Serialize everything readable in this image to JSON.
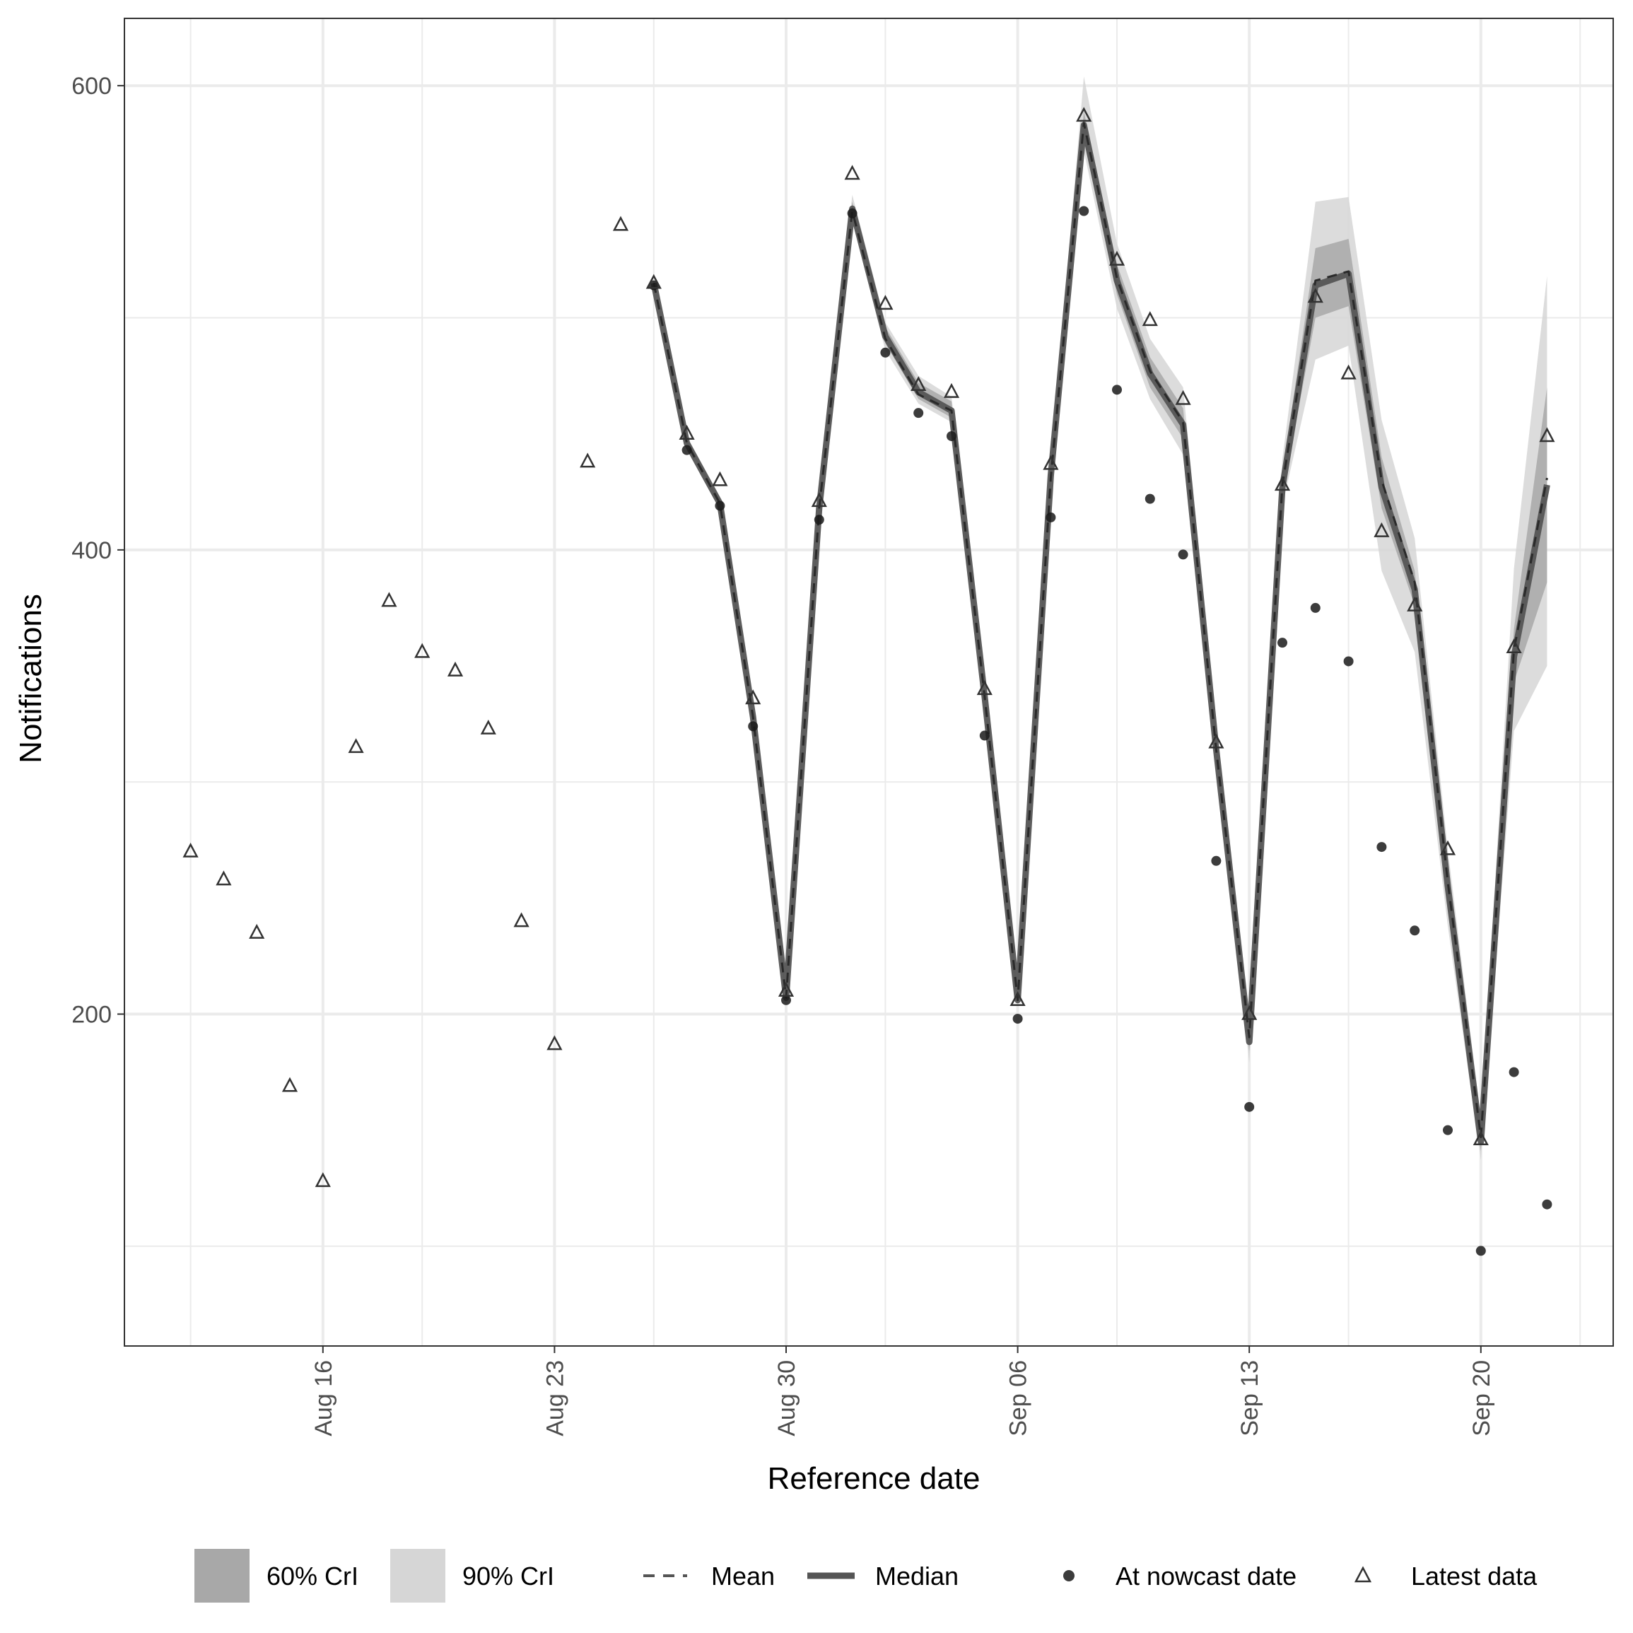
{
  "chart_data": {
    "type": "line",
    "xlabel": "Reference date",
    "ylabel": "Notifications",
    "x_ticks": [
      {
        "date": "2021-08-16",
        "label": "Aug 16"
      },
      {
        "date": "2021-08-23",
        "label": "Aug 23"
      },
      {
        "date": "2021-08-30",
        "label": "Aug 30"
      },
      {
        "date": "2021-09-06",
        "label": "Sep 06"
      },
      {
        "date": "2021-09-13",
        "label": "Sep 13"
      },
      {
        "date": "2021-09-20",
        "label": "Sep 20"
      }
    ],
    "y_ticks": [
      200,
      400,
      600
    ],
    "xlim": [
      "2021-08-10",
      "2021-09-24"
    ],
    "ylim": [
      57,
      629
    ],
    "grid": true,
    "legend_position": "bottom",
    "colors": {
      "ci60": "#a8a8a8",
      "ci90": "#d6d6d6",
      "line": "#555555",
      "points": "#1a1a1a",
      "grid": "#ebebeb",
      "axis": "#333333"
    },
    "legend": [
      {
        "key": "ci60",
        "label": "60% CrI"
      },
      {
        "key": "ci90",
        "label": "90% CrI"
      },
      {
        "key": "mean",
        "label": "Mean"
      },
      {
        "key": "median",
        "label": "Median"
      },
      {
        "key": "nowcast",
        "label": "At nowcast date"
      },
      {
        "key": "latest",
        "label": "Latest data"
      }
    ],
    "series": [
      {
        "name": "Latest data",
        "marker": "triangle",
        "points": [
          [
            "2021-08-12",
            270
          ],
          [
            "2021-08-13",
            258
          ],
          [
            "2021-08-14",
            235
          ],
          [
            "2021-08-15",
            169
          ],
          [
            "2021-08-16",
            128
          ],
          [
            "2021-08-17",
            315
          ],
          [
            "2021-08-18",
            378
          ],
          [
            "2021-08-19",
            356
          ],
          [
            "2021-08-20",
            348
          ],
          [
            "2021-08-21",
            323
          ],
          [
            "2021-08-22",
            240
          ],
          [
            "2021-08-23",
            187
          ],
          [
            "2021-08-24",
            438
          ],
          [
            "2021-08-25",
            540
          ],
          [
            "2021-08-26",
            515
          ],
          [
            "2021-08-27",
            450
          ],
          [
            "2021-08-28",
            430
          ],
          [
            "2021-08-29",
            336
          ],
          [
            "2021-08-30",
            210
          ],
          [
            "2021-08-31",
            421
          ],
          [
            "2021-09-01",
            562
          ],
          [
            "2021-09-02",
            506
          ],
          [
            "2021-09-03",
            471
          ],
          [
            "2021-09-04",
            468
          ],
          [
            "2021-09-05",
            340
          ],
          [
            "2021-09-06",
            206
          ],
          [
            "2021-09-07",
            437
          ],
          [
            "2021-09-08",
            587
          ],
          [
            "2021-09-09",
            525
          ],
          [
            "2021-09-10",
            499
          ],
          [
            "2021-09-11",
            465
          ],
          [
            "2021-09-12",
            317
          ],
          [
            "2021-09-13",
            200
          ],
          [
            "2021-09-14",
            428
          ],
          [
            "2021-09-15",
            509
          ],
          [
            "2021-09-16",
            476
          ],
          [
            "2021-09-17",
            408
          ],
          [
            "2021-09-18",
            376
          ],
          [
            "2021-09-19",
            271
          ],
          [
            "2021-09-20",
            146
          ],
          [
            "2021-09-21",
            358
          ],
          [
            "2021-09-22",
            449
          ]
        ]
      },
      {
        "name": "At nowcast date",
        "marker": "circle",
        "points": [
          [
            "2021-08-26",
            514
          ],
          [
            "2021-08-27",
            443
          ],
          [
            "2021-08-28",
            419
          ],
          [
            "2021-08-29",
            324
          ],
          [
            "2021-08-30",
            206
          ],
          [
            "2021-08-31",
            413
          ],
          [
            "2021-09-01",
            545
          ],
          [
            "2021-09-02",
            485
          ],
          [
            "2021-09-03",
            459
          ],
          [
            "2021-09-04",
            449
          ],
          [
            "2021-09-05",
            320
          ],
          [
            "2021-09-06",
            198
          ],
          [
            "2021-09-07",
            414
          ],
          [
            "2021-09-08",
            546
          ],
          [
            "2021-09-09",
            469
          ],
          [
            "2021-09-10",
            422
          ],
          [
            "2021-09-11",
            398
          ],
          [
            "2021-09-12",
            266
          ],
          [
            "2021-09-13",
            160
          ],
          [
            "2021-09-14",
            360
          ],
          [
            "2021-09-15",
            375
          ],
          [
            "2021-09-16",
            352
          ],
          [
            "2021-09-17",
            272
          ],
          [
            "2021-09-18",
            236
          ],
          [
            "2021-09-19",
            150
          ],
          [
            "2021-09-20",
            98
          ],
          [
            "2021-09-21",
            175
          ],
          [
            "2021-09-22",
            118
          ]
        ]
      }
    ],
    "nowcast": {
      "dates": [
        "2021-08-26",
        "2021-08-27",
        "2021-08-28",
        "2021-08-29",
        "2021-08-30",
        "2021-08-31",
        "2021-09-01",
        "2021-09-02",
        "2021-09-03",
        "2021-09-04",
        "2021-09-05",
        "2021-09-06",
        "2021-09-07",
        "2021-09-08",
        "2021-09-09",
        "2021-09-10",
        "2021-09-11",
        "2021-09-12",
        "2021-09-13",
        "2021-09-14",
        "2021-09-15",
        "2021-09-16",
        "2021-09-17",
        "2021-09-18",
        "2021-09-19",
        "2021-09-20",
        "2021-09-21",
        "2021-09-22"
      ],
      "median": [
        515,
        446,
        420,
        328,
        207,
        418,
        547,
        492,
        468,
        460,
        337,
        206,
        432,
        583,
        516,
        476,
        454,
        314,
        188,
        427,
        514,
        519,
        427,
        383,
        255,
        145,
        354,
        428
      ],
      "mean": [
        515,
        446,
        420,
        328,
        207,
        418,
        546,
        491,
        467,
        460,
        337,
        206,
        431,
        584,
        517,
        477,
        455,
        314,
        190,
        428,
        516,
        520,
        430,
        386,
        257,
        147,
        357,
        431
      ],
      "lo60": [
        515,
        446,
        419,
        327,
        206,
        417,
        544,
        489,
        465,
        457,
        334,
        205,
        429,
        578,
        510,
        470,
        448,
        310,
        184,
        423,
        500,
        505,
        418,
        376,
        248,
        141,
        343,
        386
      ],
      "hi60": [
        516,
        447,
        421,
        330,
        209,
        420,
        550,
        496,
        472,
        464,
        340,
        208,
        436,
        589,
        523,
        483,
        461,
        319,
        195,
        433,
        530,
        534,
        440,
        391,
        262,
        150,
        366,
        470
      ],
      "lo90": [
        515,
        445,
        418,
        326,
        205,
        416,
        542,
        486,
        463,
        455,
        331,
        203,
        426,
        572,
        504,
        465,
        441,
        306,
        179,
        419,
        482,
        488,
        391,
        356,
        238,
        137,
        322,
        350
      ],
      "hi90": [
        517,
        448,
        422,
        331,
        210,
        421,
        553,
        498,
        475,
        466,
        343,
        210,
        439,
        604,
        532,
        491,
        470,
        323,
        199,
        439,
        550,
        552,
        456,
        405,
        271,
        155,
        392,
        518
      ]
    }
  }
}
